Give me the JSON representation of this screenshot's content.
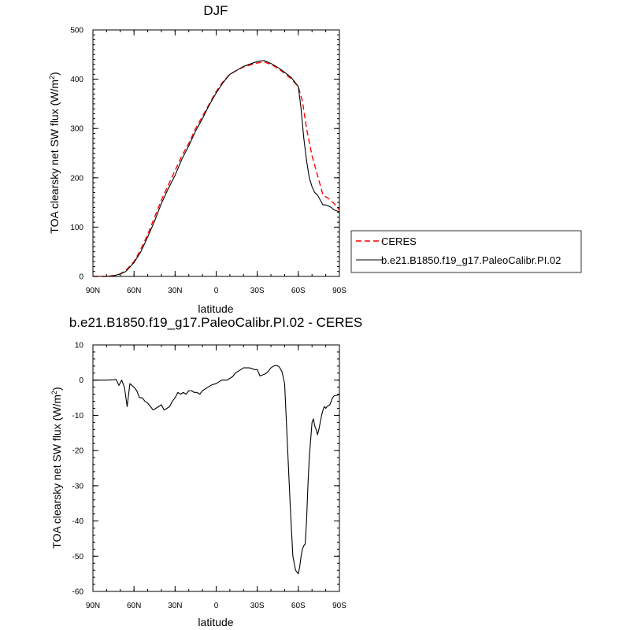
{
  "chart_data": [
    {
      "type": "line",
      "title": "DJF",
      "xlabel": "latitude",
      "ylabel_main": "TOA clearsky net SW flux (W/m",
      "ylabel_sup": "2",
      "ylabel_close": ")",
      "xlim": [
        90,
        -90
      ],
      "ylim": [
        0,
        500
      ],
      "xticks": [
        {
          "value": 90,
          "label": "90N"
        },
        {
          "value": 60,
          "label": "60N"
        },
        {
          "value": 30,
          "label": "30N"
        },
        {
          "value": 0,
          "label": "0"
        },
        {
          "value": -30,
          "label": "30S"
        },
        {
          "value": -60,
          "label": "60S"
        },
        {
          "value": -90,
          "label": "90S"
        }
      ],
      "yticks": [
        0,
        100,
        200,
        300,
        400,
        500
      ],
      "legend": {
        "placement": "right"
      },
      "series": [
        {
          "name": "CERES",
          "color": "#ff0000",
          "dash": true,
          "x": [
            90,
            80,
            74,
            70,
            66,
            60,
            55,
            50,
            45,
            40,
            35,
            30,
            25,
            20,
            15,
            10,
            5,
            0,
            -5,
            -10,
            -15,
            -20,
            -25,
            -30,
            -35,
            -40,
            -45,
            -50,
            -55,
            -60,
            -63,
            -66,
            -70,
            -74,
            -78,
            -82,
            -86,
            -90
          ],
          "y": [
            0,
            0,
            2,
            5,
            12,
            30,
            55,
            85,
            120,
            155,
            185,
            215,
            245,
            270,
            300,
            325,
            350,
            375,
            395,
            410,
            418,
            425,
            429,
            433,
            435,
            430,
            422,
            412,
            400,
            385,
            355,
            300,
            245,
            205,
            165,
            158,
            148,
            135
          ]
        },
        {
          "name": "b.e21.B1850.f19_g17.PaleoCalibr.PI.02",
          "color": "#000000",
          "dash": false,
          "x": [
            90,
            80,
            74,
            70,
            66,
            60,
            55,
            50,
            45,
            40,
            35,
            30,
            25,
            20,
            15,
            10,
            5,
            0,
            -5,
            -10,
            -15,
            -20,
            -25,
            -30,
            -35,
            -40,
            -45,
            -50,
            -55,
            -60,
            -62,
            -64,
            -66,
            -68,
            -70,
            -72,
            -74,
            -76,
            -78,
            -80,
            -82,
            -84,
            -86,
            -88,
            -90
          ],
          "y": [
            0,
            0,
            2,
            5,
            10,
            28,
            50,
            80,
            112,
            148,
            178,
            205,
            238,
            265,
            295,
            320,
            348,
            372,
            393,
            410,
            418,
            426,
            431,
            436,
            438,
            432,
            424,
            414,
            403,
            385,
            340,
            280,
            235,
            200,
            182,
            170,
            165,
            155,
            145,
            145,
            143,
            140,
            135,
            133,
            131
          ]
        }
      ]
    },
    {
      "type": "line",
      "title": "b.e21.B1850.f19_g17.PaleoCalibr.PI.02 - CERES",
      "xlabel": "latitude",
      "ylabel_main": "TOA clearsky net SW flux (W/m",
      "ylabel_sup": "2",
      "ylabel_close": ")",
      "xlim": [
        90,
        -90
      ],
      "ylim": [
        -60,
        10
      ],
      "xticks": [
        {
          "value": 90,
          "label": "90N"
        },
        {
          "value": 60,
          "label": "60N"
        },
        {
          "value": 30,
          "label": "30N"
        },
        {
          "value": 0,
          "label": "0"
        },
        {
          "value": -30,
          "label": "30S"
        },
        {
          "value": -60,
          "label": "60S"
        },
        {
          "value": -90,
          "label": "90S"
        }
      ],
      "yticks": [
        -60,
        -50,
        -40,
        -30,
        -20,
        -10,
        0,
        10
      ],
      "series": [
        {
          "color": "#000000",
          "dash": false,
          "x": [
            90,
            85,
            80,
            75,
            73,
            71,
            69,
            67,
            65,
            63,
            60,
            58,
            56,
            54,
            52,
            50,
            48,
            46,
            44,
            42,
            40,
            38,
            36,
            34,
            32,
            30,
            28,
            26,
            24,
            22,
            20,
            18,
            16,
            14,
            12,
            10,
            8,
            6,
            4,
            2,
            0,
            -2,
            -4,
            -6,
            -8,
            -10,
            -12,
            -14,
            -16,
            -18,
            -20,
            -22,
            -24,
            -26,
            -28,
            -30,
            -32,
            -34,
            -36,
            -38,
            -40,
            -42,
            -44,
            -46,
            -48,
            -50,
            -52,
            -54,
            -56,
            -58,
            -60,
            -61,
            -62,
            -63,
            -64,
            -65,
            -66,
            -67,
            -68,
            -69,
            -70,
            -71,
            -72,
            -73,
            -74,
            -75,
            -76,
            -77,
            -78,
            -79,
            -80,
            -81,
            -82,
            -83,
            -84,
            -85,
            -86,
            -87,
            -88,
            -89,
            -90
          ],
          "y": [
            0,
            0,
            0,
            0.1,
            0.2,
            -1.5,
            0,
            -2,
            -7.5,
            -1,
            -2,
            -3,
            -5,
            -5,
            -6,
            -6.5,
            -7.5,
            -8.5,
            -8,
            -7.5,
            -7,
            -8.5,
            -8,
            -7.5,
            -6,
            -5,
            -3.5,
            -4,
            -3.5,
            -4,
            -3,
            -3,
            -3.5,
            -3.5,
            -4,
            -3,
            -2.5,
            -2,
            -1.5,
            -1.2,
            -1,
            -0.5,
            0,
            0,
            0,
            0.5,
            1,
            2,
            2.5,
            3,
            3.5,
            3.5,
            3.5,
            3.3,
            3,
            3,
            1.2,
            1.5,
            1.8,
            2.5,
            3.5,
            4,
            4.2,
            3.8,
            2.5,
            -1,
            -18,
            -35,
            -50,
            -54,
            -55,
            -53,
            -50,
            -48,
            -47,
            -46.5,
            -40,
            -30,
            -22,
            -17,
            -12,
            -11,
            -13,
            -14,
            -15.5,
            -14,
            -12,
            -10,
            -8.5,
            -7.5,
            -8,
            -7.5,
            -7.2,
            -7,
            -6,
            -5,
            -4.5,
            -4.4,
            -4.3,
            -4.2,
            -4.2
          ]
        }
      ]
    }
  ]
}
